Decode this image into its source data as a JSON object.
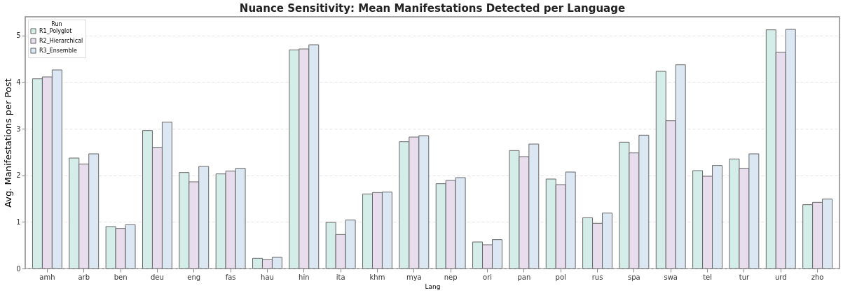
{
  "chart_data": {
    "type": "bar",
    "title": "Nuance Sensitivity: Mean Manifestations Detected per Language",
    "xlabel": "Lang",
    "ylabel": "Avg. Manifestations per Post",
    "legend_title": "Run",
    "legend": "top left",
    "grid": "y",
    "categories": [
      "amh",
      "arb",
      "ben",
      "deu",
      "eng",
      "fas",
      "hau",
      "hin",
      "ita",
      "khm",
      "mya",
      "nep",
      "ori",
      "pan",
      "pol",
      "rus",
      "spa",
      "swa",
      "tel",
      "tur",
      "urd",
      "zho"
    ],
    "series": [
      {
        "name": "R1_Polyglot",
        "color": "#d4ede8",
        "values": [
          4.07,
          2.37,
          0.9,
          2.96,
          2.06,
          2.03,
          0.22,
          4.69,
          0.99,
          1.6,
          2.72,
          1.82,
          0.57,
          2.53,
          1.92,
          1.09,
          2.71,
          4.23,
          2.1,
          2.35,
          5.12,
          1.37
        ]
      },
      {
        "name": "R2_Hierarchical",
        "color": "#e8dded",
        "values": [
          4.11,
          2.24,
          0.86,
          2.6,
          1.86,
          2.09,
          0.19,
          4.71,
          0.73,
          1.63,
          2.82,
          1.89,
          0.51,
          2.4,
          1.8,
          0.97,
          2.48,
          3.17,
          1.98,
          2.15,
          4.64,
          1.42
        ]
      },
      {
        "name": "R3_Ensemble",
        "color": "#dbe7f3",
        "values": [
          4.26,
          2.46,
          0.94,
          3.14,
          2.19,
          2.15,
          0.24,
          4.8,
          1.04,
          1.64,
          2.85,
          1.95,
          0.62,
          2.67,
          2.07,
          1.19,
          2.86,
          4.37,
          2.21,
          2.46,
          5.13,
          1.49
        ]
      }
    ],
    "ylim": [
      0,
      5.4
    ],
    "yticks": [
      0,
      1,
      2,
      3,
      4,
      5
    ]
  }
}
